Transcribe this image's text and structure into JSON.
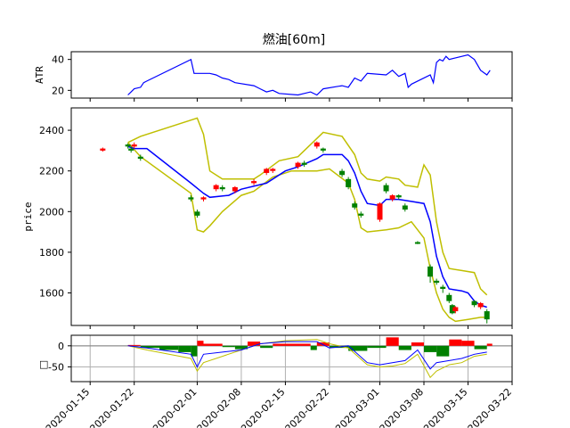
{
  "chart_data": [
    {
      "panel": "atr",
      "type": "line",
      "title": "燃油[60m]",
      "ylabel": "ATR",
      "ylim": [
        15,
        45
      ],
      "yticks": [
        20,
        40
      ],
      "colors": {
        "atr": "#0000ff"
      },
      "series": [
        {
          "values_by_date": [
            [
              "2020-01-21",
              17
            ],
            [
              "2020-01-21T12",
              19
            ],
            [
              "2020-01-22",
              21
            ],
            [
              "2020-01-23",
              22
            ],
            [
              "2020-01-23T12",
              25
            ],
            [
              "2020-01-24",
              26
            ],
            [
              "2020-01-31",
              40
            ],
            [
              "2020-01-31T12",
              31
            ],
            [
              "2020-02-03",
              31
            ],
            [
              "2020-02-04",
              30
            ],
            [
              "2020-02-05",
              28
            ],
            [
              "2020-02-06",
              27
            ],
            [
              "2020-02-07",
              25
            ],
            [
              "2020-02-10",
              23
            ],
            [
              "2020-02-11",
              21
            ],
            [
              "2020-02-12",
              19
            ],
            [
              "2020-02-13",
              20
            ],
            [
              "2020-02-14",
              18
            ],
            [
              "2020-02-17",
              17
            ],
            [
              "2020-02-18",
              18
            ],
            [
              "2020-02-19",
              19
            ],
            [
              "2020-02-20",
              17
            ],
            [
              "2020-02-21",
              21
            ],
            [
              "2020-02-24",
              23
            ],
            [
              "2020-02-25",
              22
            ],
            [
              "2020-02-26",
              28
            ],
            [
              "2020-02-27",
              26
            ],
            [
              "2020-02-28",
              31
            ],
            [
              "2020-03-02",
              30
            ],
            [
              "2020-03-03",
              33
            ],
            [
              "2020-03-04",
              29
            ],
            [
              "2020-03-05",
              31
            ],
            [
              "2020-03-05T12",
              22
            ],
            [
              "2020-03-06",
              24
            ],
            [
              "2020-03-09",
              30
            ],
            [
              "2020-03-09T12",
              25
            ],
            [
              "2020-03-10",
              38
            ],
            [
              "2020-03-10T12",
              40
            ],
            [
              "2020-03-11",
              39
            ],
            [
              "2020-03-11T12",
              42
            ],
            [
              "2020-03-12",
              40
            ],
            [
              "2020-03-13",
              41
            ],
            [
              "2020-03-15",
              43
            ],
            [
              "2020-03-16",
              40
            ],
            [
              "2020-03-17",
              33
            ],
            [
              "2020-03-18",
              30
            ],
            [
              "2020-03-18T12",
              33
            ]
          ]
        }
      ]
    },
    {
      "panel": "price",
      "type": "candlestick",
      "ylabel": "price",
      "ylim": [
        1440,
        2510
      ],
      "yticks": [
        1600,
        1800,
        2000,
        2200,
        2400
      ],
      "colors": {
        "up": "#ff0000",
        "down": "#008000",
        "mid": "#0000ff",
        "band": "#bfbf00"
      },
      "candles": [
        [
          "2020-01-17",
          2300,
          2310,
          2295,
          2315
        ],
        [
          "2020-01-21",
          2330,
          2320,
          2310,
          2335
        ],
        [
          "2020-01-21T12",
          2310,
          2300,
          2290,
          2320
        ],
        [
          "2020-01-22",
          2320,
          2330,
          2310,
          2340
        ],
        [
          "2020-01-23",
          2270,
          2260,
          2250,
          2280
        ],
        [
          "2020-01-31",
          2070,
          2060,
          2050,
          2080
        ],
        [
          "2020-02-01",
          2000,
          1980,
          1970,
          2010
        ],
        [
          "2020-02-02",
          2060,
          2070,
          2050,
          2075
        ],
        [
          "2020-02-04",
          2110,
          2130,
          2100,
          2135
        ],
        [
          "2020-02-05",
          2120,
          2110,
          2100,
          2130
        ],
        [
          "2020-02-07",
          2100,
          2120,
          2090,
          2125
        ],
        [
          "2020-02-10",
          2140,
          2150,
          2130,
          2160
        ],
        [
          "2020-02-12",
          2190,
          2210,
          2180,
          2215
        ],
        [
          "2020-02-13",
          2200,
          2210,
          2190,
          2215
        ],
        [
          "2020-02-17",
          2220,
          2240,
          2210,
          2245
        ],
        [
          "2020-02-18",
          2240,
          2230,
          2220,
          2250
        ],
        [
          "2020-02-20",
          2320,
          2340,
          2310,
          2345
        ],
        [
          "2020-02-21",
          2310,
          2300,
          2290,
          2315
        ],
        [
          "2020-02-24",
          2200,
          2180,
          2170,
          2210
        ],
        [
          "2020-02-25",
          2160,
          2120,
          2110,
          2170
        ],
        [
          "2020-02-26",
          2040,
          2020,
          2010,
          2050
        ],
        [
          "2020-02-27",
          1990,
          1980,
          1970,
          2000
        ],
        [
          "2020-03-01",
          1960,
          2040,
          1950,
          2045
        ],
        [
          "2020-03-02",
          2130,
          2100,
          2090,
          2140
        ],
        [
          "2020-03-03",
          2060,
          2080,
          2050,
          2085
        ],
        [
          "2020-03-04",
          2080,
          2070,
          2060,
          2085
        ],
        [
          "2020-03-05",
          2030,
          2010,
          2000,
          2040
        ],
        [
          "2020-03-07",
          1850,
          1845,
          1840,
          1855
        ],
        [
          "2020-03-09",
          1730,
          1680,
          1650,
          1740
        ],
        [
          "2020-03-10",
          1660,
          1650,
          1640,
          1670
        ],
        [
          "2020-03-11",
          1630,
          1620,
          1600,
          1640
        ],
        [
          "2020-03-12",
          1590,
          1560,
          1550,
          1600
        ],
        [
          "2020-03-12T12",
          1540,
          1500,
          1495,
          1545
        ],
        [
          "2020-03-13",
          1510,
          1530,
          1500,
          1535
        ],
        [
          "2020-03-16",
          1560,
          1540,
          1530,
          1565
        ],
        [
          "2020-03-17",
          1530,
          1550,
          1520,
          1555
        ],
        [
          "2020-03-18",
          1510,
          1470,
          1450,
          1520
        ]
      ],
      "mid_line": [
        [
          "2020-01-21",
          2320
        ],
        [
          "2020-01-22",
          2310
        ],
        [
          "2020-01-24",
          2310
        ],
        [
          "2020-01-31",
          2140
        ],
        [
          "2020-02-02",
          2090
        ],
        [
          "2020-02-03",
          2070
        ],
        [
          "2020-02-06",
          2080
        ],
        [
          "2020-02-08",
          2110
        ],
        [
          "2020-02-12",
          2140
        ],
        [
          "2020-02-15",
          2200
        ],
        [
          "2020-02-17",
          2220
        ],
        [
          "2020-02-20",
          2260
        ],
        [
          "2020-02-21",
          2280
        ],
        [
          "2020-02-24",
          2280
        ],
        [
          "2020-02-25",
          2250
        ],
        [
          "2020-02-26",
          2190
        ],
        [
          "2020-02-27",
          2100
        ],
        [
          "2020-02-28",
          2040
        ],
        [
          "2020-03-01",
          2030
        ],
        [
          "2020-03-02",
          2060
        ],
        [
          "2020-03-04",
          2060
        ],
        [
          "2020-03-06",
          2050
        ],
        [
          "2020-03-08",
          2040
        ],
        [
          "2020-03-09",
          1950
        ],
        [
          "2020-03-10",
          1780
        ],
        [
          "2020-03-11",
          1680
        ],
        [
          "2020-03-12",
          1620
        ],
        [
          "2020-03-14",
          1610
        ],
        [
          "2020-03-15",
          1600
        ],
        [
          "2020-03-16",
          1560
        ],
        [
          "2020-03-17",
          1540
        ],
        [
          "2020-03-18",
          1530
        ]
      ],
      "upper_band": [
        [
          "2020-01-21",
          2340
        ],
        [
          "2020-01-23",
          2370
        ],
        [
          "2020-01-31",
          2450
        ],
        [
          "2020-02-01",
          2460
        ],
        [
          "2020-02-02",
          2380
        ],
        [
          "2020-02-03",
          2200
        ],
        [
          "2020-02-05",
          2160
        ],
        [
          "2020-02-10",
          2160
        ],
        [
          "2020-02-11",
          2180
        ],
        [
          "2020-02-14",
          2250
        ],
        [
          "2020-02-17",
          2270
        ],
        [
          "2020-02-21",
          2390
        ],
        [
          "2020-02-24",
          2370
        ],
        [
          "2020-02-26",
          2280
        ],
        [
          "2020-02-27",
          2190
        ],
        [
          "2020-02-28",
          2160
        ],
        [
          "2020-03-01",
          2150
        ],
        [
          "2020-03-02",
          2170
        ],
        [
          "2020-03-04",
          2160
        ],
        [
          "2020-03-05",
          2130
        ],
        [
          "2020-03-07",
          2120
        ],
        [
          "2020-03-08",
          2230
        ],
        [
          "2020-03-09",
          2180
        ],
        [
          "2020-03-10",
          1950
        ],
        [
          "2020-03-11",
          1800
        ],
        [
          "2020-03-12",
          1720
        ],
        [
          "2020-03-14",
          1710
        ],
        [
          "2020-03-16",
          1700
        ],
        [
          "2020-03-17",
          1620
        ],
        [
          "2020-03-18",
          1590
        ]
      ],
      "lower_band": [
        [
          "2020-01-21",
          2340
        ],
        [
          "2020-01-23",
          2270
        ],
        [
          "2020-01-31",
          2090
        ],
        [
          "2020-02-01",
          1910
        ],
        [
          "2020-02-02",
          1900
        ],
        [
          "2020-02-03",
          1930
        ],
        [
          "2020-02-05",
          2000
        ],
        [
          "2020-02-08",
          2080
        ],
        [
          "2020-02-10",
          2100
        ],
        [
          "2020-02-13",
          2170
        ],
        [
          "2020-02-16",
          2200
        ],
        [
          "2020-02-20",
          2200
        ],
        [
          "2020-02-22",
          2210
        ],
        [
          "2020-02-25",
          2140
        ],
        [
          "2020-02-26",
          2060
        ],
        [
          "2020-02-27",
          1920
        ],
        [
          "2020-02-28",
          1900
        ],
        [
          "2020-03-02",
          1910
        ],
        [
          "2020-03-04",
          1920
        ],
        [
          "2020-03-06",
          1950
        ],
        [
          "2020-03-08",
          1870
        ],
        [
          "2020-03-09",
          1720
        ],
        [
          "2020-03-10",
          1600
        ],
        [
          "2020-03-11",
          1520
        ],
        [
          "2020-03-12",
          1480
        ],
        [
          "2020-03-13",
          1460
        ],
        [
          "2020-03-15",
          1470
        ],
        [
          "2020-03-17",
          1480
        ],
        [
          "2020-03-18",
          1480
        ]
      ]
    },
    {
      "panel": "oscillator",
      "type": "area",
      "ylabel": "□",
      "ylim": [
        -85,
        25
      ],
      "yticks": [
        0,
        -50
      ],
      "grid": true,
      "xticks": [
        "2020-01-15",
        "2020-01-22",
        "2020-02-01",
        "2020-02-08",
        "2020-02-15",
        "2020-02-22",
        "2020-03-01",
        "2020-03-08",
        "2020-03-15",
        "2020-03-22"
      ],
      "colors": {
        "pos": "#ff0000",
        "neg": "#008000",
        "line1": "#0000ff",
        "line2": "#bfbf00",
        "zero": "#808080"
      },
      "bars": [
        [
          "2020-01-21",
          2
        ],
        [
          "2020-01-23",
          -5
        ],
        [
          "2020-01-26",
          -10
        ],
        [
          "2020-01-29",
          -15
        ],
        [
          "2020-01-31",
          -25
        ],
        [
          "2020-02-01",
          12
        ],
        [
          "2020-02-02",
          5
        ],
        [
          "2020-02-05",
          -3
        ],
        [
          "2020-02-07",
          -8
        ],
        [
          "2020-02-09",
          10
        ],
        [
          "2020-02-11",
          -5
        ],
        [
          "2020-02-13",
          5
        ],
        [
          "2020-02-19",
          -10
        ],
        [
          "2020-02-20",
          8
        ],
        [
          "2020-02-22",
          -5
        ],
        [
          "2020-02-25",
          -12
        ],
        [
          "2020-02-28",
          -5
        ],
        [
          "2020-03-02",
          20
        ],
        [
          "2020-03-04",
          -10
        ],
        [
          "2020-03-06",
          8
        ],
        [
          "2020-03-08",
          -15
        ],
        [
          "2020-03-10",
          -25
        ],
        [
          "2020-03-12",
          15
        ],
        [
          "2020-03-14",
          12
        ],
        [
          "2020-03-16",
          -8
        ],
        [
          "2020-03-18",
          5
        ]
      ],
      "line1": [
        [
          "2020-01-21",
          0
        ],
        [
          "2020-01-24",
          -5
        ],
        [
          "2020-01-31",
          -20
        ],
        [
          "2020-02-01",
          -50
        ],
        [
          "2020-02-02",
          -20
        ],
        [
          "2020-02-05",
          -15
        ],
        [
          "2020-02-08",
          -10
        ],
        [
          "2020-02-11",
          5
        ],
        [
          "2020-02-15",
          10
        ],
        [
          "2020-02-20",
          10
        ],
        [
          "2020-02-22",
          -5
        ],
        [
          "2020-02-25",
          0
        ],
        [
          "2020-02-28",
          -40
        ],
        [
          "2020-03-01",
          -45
        ],
        [
          "2020-03-03",
          -40
        ],
        [
          "2020-03-05",
          -35
        ],
        [
          "2020-03-07",
          -10
        ],
        [
          "2020-03-09",
          -55
        ],
        [
          "2020-03-10",
          -40
        ],
        [
          "2020-03-12",
          -35
        ],
        [
          "2020-03-14",
          -30
        ],
        [
          "2020-03-16",
          -20
        ],
        [
          "2020-03-18",
          -15
        ]
      ],
      "line2": [
        [
          "2020-01-21",
          0
        ],
        [
          "2020-01-24",
          -10
        ],
        [
          "2020-01-31",
          -30
        ],
        [
          "2020-02-01",
          -60
        ],
        [
          "2020-02-02",
          -40
        ],
        [
          "2020-02-05",
          -25
        ],
        [
          "2020-02-08",
          -10
        ],
        [
          "2020-02-11",
          5
        ],
        [
          "2020-02-15",
          12
        ],
        [
          "2020-02-20",
          15
        ],
        [
          "2020-02-22",
          5
        ],
        [
          "2020-02-25",
          -5
        ],
        [
          "2020-02-28",
          -45
        ],
        [
          "2020-03-01",
          -50
        ],
        [
          "2020-03-03",
          -48
        ],
        [
          "2020-03-05",
          -42
        ],
        [
          "2020-03-07",
          -20
        ],
        [
          "2020-03-09",
          -75
        ],
        [
          "2020-03-10",
          -60
        ],
        [
          "2020-03-12",
          -45
        ],
        [
          "2020-03-14",
          -40
        ],
        [
          "2020-03-16",
          -25
        ],
        [
          "2020-03-18",
          -20
        ]
      ]
    }
  ],
  "date_tick_labels": [
    "2020-01-15",
    "2020-01-22",
    "2020-02-01",
    "2020-02-08",
    "2020-02-15",
    "2020-02-22",
    "2020-03-01",
    "2020-03-08",
    "2020-03-15",
    "2020-03-22"
  ]
}
